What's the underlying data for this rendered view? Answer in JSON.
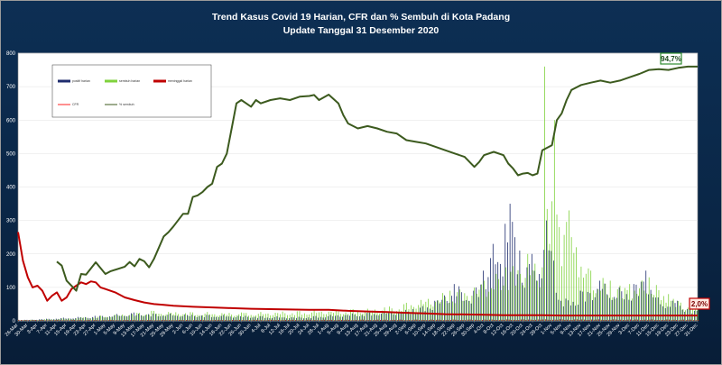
{
  "chart_data": {
    "type": "bar+line",
    "title": "Trend Kasus Covid 19 Harian, CFR dan % Sembuh di Kota Padang",
    "subtitle": "Update Tanggal 31 Desember  2020",
    "ylim": [
      0,
      800
    ],
    "y_ticks": [
      0,
      100,
      200,
      300,
      400,
      500,
      600,
      700,
      800
    ],
    "x_tick_labels": [
      "26-Mar",
      "30-Mar",
      "3-Apr",
      "7-Apr",
      "11-Apr",
      "15-Apr",
      "19-Apr",
      "23-Apr",
      "27-Apr",
      "1-May",
      "5-May",
      "9-May",
      "13-May",
      "17-May",
      "21-May",
      "25-May",
      "29-May",
      "2-Jun",
      "6-Jun",
      "10-Jun",
      "14-Jun",
      "18-Jun",
      "22-Jun",
      "26-Jun",
      "30-Jun",
      "4-Jul",
      "8-Jul",
      "12-Jul",
      "16-Jul",
      "20-Jul",
      "24-Jul",
      "28-Jul",
      "1-Aug",
      "5-Aug",
      "9-Aug",
      "13-Aug",
      "17-Aug",
      "21-Aug",
      "25-Aug",
      "29-Aug",
      "2-Sep",
      "6-Sep",
      "10-Sep",
      "14-Sep",
      "18-Sep",
      "22-Sep",
      "26-Sep",
      "30-Sep",
      "4-Oct",
      "8-Oct",
      "12-Oct",
      "16-Oct",
      "20-Oct",
      "24-Oct",
      "28-Oct",
      "1-Nov",
      "5-Nov",
      "9-Nov",
      "13-Nov",
      "17-Nov",
      "21-Nov",
      "25-Nov",
      "29-Nov",
      "3-Dec",
      "7-Dec",
      "11-Dec",
      "15-Dec",
      "19-Dec",
      "23-Dec",
      "27-Dec",
      "31-Dec"
    ],
    "legend": [
      "positif harian",
      "sembuh harian",
      "meninggal harian",
      "CFR",
      "% sembuh"
    ],
    "series_colors": {
      "positif": "#1f2d6e",
      "sembuh": "#7fd23c",
      "meninggal": "#c00000",
      "cfr": "#ff2020",
      "sembuh_pct": "#3c5a1e"
    },
    "annotations": [
      {
        "label": "94,7%",
        "series": "% sembuh",
        "x": "31-Dec",
        "value": 94.7
      },
      {
        "label": "2,0%",
        "series": "CFR",
        "x": "31-Dec",
        "value": 2.0
      }
    ],
    "pct_sembuh_keypoints": [
      [
        "26-Mar",
        null
      ],
      [
        "11-Apr",
        177
      ],
      [
        "13-Apr",
        165
      ],
      [
        "15-Apr",
        120
      ],
      [
        "19-Apr",
        90
      ],
      [
        "21-Apr",
        140
      ],
      [
        "23-Apr",
        138
      ],
      [
        "27-Apr",
        175
      ],
      [
        "1-May",
        140
      ],
      [
        "3-May",
        148
      ],
      [
        "9-May",
        162
      ],
      [
        "11-May",
        176
      ],
      [
        "13-May",
        163
      ],
      [
        "15-May",
        185
      ],
      [
        "17-May",
        178
      ],
      [
        "19-May",
        160
      ],
      [
        "21-May",
        185
      ],
      [
        "25-May",
        252
      ],
      [
        "27-May",
        265
      ],
      [
        "29-May",
        282
      ],
      [
        "2-Jun",
        320
      ],
      [
        "4-Jun",
        320
      ],
      [
        "6-Jun",
        370
      ],
      [
        "8-Jun",
        375
      ],
      [
        "10-Jun",
        385
      ],
      [
        "12-Jun",
        400
      ],
      [
        "14-Jun",
        410
      ],
      [
        "16-Jun",
        460
      ],
      [
        "18-Jun",
        470
      ],
      [
        "20-Jun",
        500
      ],
      [
        "22-Jun",
        575
      ],
      [
        "24-Jun",
        650
      ],
      [
        "26-Jun",
        660
      ],
      [
        "28-Jun",
        650
      ],
      [
        "30-Jun",
        640
      ],
      [
        "2-Jul",
        660
      ],
      [
        "4-Jul",
        650
      ],
      [
        "8-Jul",
        660
      ],
      [
        "12-Jul",
        665
      ],
      [
        "16-Jul",
        660
      ],
      [
        "20-Jul",
        670
      ],
      [
        "24-Jul",
        672
      ],
      [
        "26-Jul",
        675
      ],
      [
        "28-Jul",
        660
      ],
      [
        "1-Aug",
        676
      ],
      [
        "5-Aug",
        650
      ],
      [
        "7-Aug",
        615
      ],
      [
        "9-Aug",
        590
      ],
      [
        "13-Aug",
        575
      ],
      [
        "17-Aug",
        582
      ],
      [
        "21-Aug",
        575
      ],
      [
        "25-Aug",
        565
      ],
      [
        "29-Aug",
        560
      ],
      [
        "2-Sep",
        540
      ],
      [
        "6-Sep",
        535
      ],
      [
        "10-Sep",
        530
      ],
      [
        "14-Sep",
        520
      ],
      [
        "18-Sep",
        510
      ],
      [
        "22-Sep",
        500
      ],
      [
        "26-Sep",
        490
      ],
      [
        "30-Sep",
        460
      ],
      [
        "2-Oct",
        475
      ],
      [
        "4-Oct",
        495
      ],
      [
        "8-Oct",
        505
      ],
      [
        "12-Oct",
        495
      ],
      [
        "14-Oct",
        470
      ],
      [
        "16-Oct",
        455
      ],
      [
        "18-Oct",
        435
      ],
      [
        "20-Oct",
        440
      ],
      [
        "22-Oct",
        442
      ],
      [
        "24-Oct",
        435
      ],
      [
        "26-Oct",
        440
      ],
      [
        "28-Oct",
        510
      ],
      [
        "1-Nov",
        525
      ],
      [
        "3-Nov",
        600
      ],
      [
        "5-Nov",
        620
      ],
      [
        "7-Nov",
        660
      ],
      [
        "9-Nov",
        690
      ],
      [
        "13-Nov",
        705
      ],
      [
        "17-Nov",
        712
      ],
      [
        "21-Nov",
        718
      ],
      [
        "25-Nov",
        712
      ],
      [
        "29-Nov",
        718
      ],
      [
        "3-Dec",
        728
      ],
      [
        "7-Dec",
        738
      ],
      [
        "11-Dec",
        750
      ],
      [
        "15-Dec",
        752
      ],
      [
        "19-Dec",
        750
      ],
      [
        "23-Dec",
        756
      ],
      [
        "27-Dec",
        760
      ],
      [
        "31-Dec",
        760
      ]
    ],
    "cfr_keypoints": [
      [
        "26-Mar",
        265
      ],
      [
        "28-Mar",
        180
      ],
      [
        "30-Mar",
        130
      ],
      [
        "1-Apr",
        100
      ],
      [
        "3-Apr",
        105
      ],
      [
        "5-Apr",
        90
      ],
      [
        "7-Apr",
        60
      ],
      [
        "9-Apr",
        75
      ],
      [
        "11-Apr",
        85
      ],
      [
        "13-Apr",
        60
      ],
      [
        "15-Apr",
        70
      ],
      [
        "17-Apr",
        95
      ],
      [
        "19-Apr",
        105
      ],
      [
        "21-Apr",
        115
      ],
      [
        "23-Apr",
        110
      ],
      [
        "25-Apr",
        118
      ],
      [
        "27-Apr",
        115
      ],
      [
        "29-Apr",
        100
      ],
      [
        "1-May",
        95
      ],
      [
        "5-May",
        85
      ],
      [
        "9-May",
        70
      ],
      [
        "13-May",
        62
      ],
      [
        "17-May",
        55
      ],
      [
        "21-May",
        50
      ],
      [
        "25-May",
        48
      ],
      [
        "29-May",
        45
      ],
      [
        "6-Jun",
        42
      ],
      [
        "14-Jun",
        40
      ],
      [
        "22-Jun",
        38
      ],
      [
        "30-Jun",
        36
      ],
      [
        "8-Jul",
        35
      ],
      [
        "16-Jul",
        34
      ],
      [
        "24-Jul",
        33
      ],
      [
        "1-Aug",
        33
      ],
      [
        "9-Aug",
        30
      ],
      [
        "17-Aug",
        28
      ],
      [
        "25-Aug",
        26
      ],
      [
        "2-Sep",
        24
      ],
      [
        "10-Sep",
        22
      ],
      [
        "18-Sep",
        20
      ],
      [
        "26-Sep",
        19
      ],
      [
        "4-Oct",
        18
      ],
      [
        "12-Oct",
        17
      ],
      [
        "20-Oct",
        17
      ],
      [
        "28-Oct",
        17
      ],
      [
        "5-Nov",
        16
      ],
      [
        "13-Nov",
        16
      ],
      [
        "21-Nov",
        16
      ],
      [
        "29-Nov",
        16
      ],
      [
        "7-Dec",
        16
      ],
      [
        "15-Dec",
        16
      ],
      [
        "23-Dec",
        16
      ],
      [
        "31-Dec",
        16
      ]
    ],
    "positif_harian_keypoints": [
      [
        "26-Mar",
        2
      ],
      [
        "27-Apr",
        15
      ],
      [
        "13-May",
        25
      ],
      [
        "20-Jul",
        12
      ],
      [
        "5-Sep",
        35
      ],
      [
        "14-Sep",
        60
      ],
      [
        "22-Sep",
        110
      ],
      [
        "30-Sep",
        90
      ],
      [
        "4-Oct",
        150
      ],
      [
        "8-Oct",
        230
      ],
      [
        "11-Oct",
        170
      ],
      [
        "13-Oct",
        290
      ],
      [
        "15-Oct",
        350
      ],
      [
        "17-Oct",
        250
      ],
      [
        "19-Oct",
        210
      ],
      [
        "22-Oct",
        160
      ],
      [
        "24-Oct",
        200
      ],
      [
        "27-Oct",
        140
      ],
      [
        "30-Oct",
        300
      ],
      [
        "2-Nov",
        180
      ],
      [
        "5-Nov",
        60
      ],
      [
        "13-Nov",
        90
      ],
      [
        "21-Nov",
        120
      ],
      [
        "29-Nov",
        100
      ],
      [
        "5-Dec",
        110
      ],
      [
        "10-Dec",
        150
      ],
      [
        "15-Dec",
        70
      ],
      [
        "23-Dec",
        60
      ],
      [
        "31-Dec",
        30
      ]
    ],
    "sembuh_harian_keypoints": [
      [
        "26-Mar",
        2
      ],
      [
        "21-Apr",
        10
      ],
      [
        "20-May",
        30
      ],
      [
        "26-Jun",
        25
      ],
      [
        "24-Aug",
        40
      ],
      [
        "20-Sep",
        90
      ],
      [
        "4-Oct",
        120
      ],
      [
        "13-Oct",
        160
      ],
      [
        "22-Oct",
        200
      ],
      [
        "28-Oct",
        160
      ],
      [
        "29-Oct",
        760
      ],
      [
        "31-Oct",
        230
      ],
      [
        "2-Nov",
        600
      ],
      [
        "4-Nov",
        280
      ],
      [
        "8-Nov",
        330
      ],
      [
        "11-Nov",
        220
      ],
      [
        "17-Nov",
        150
      ],
      [
        "25-Nov",
        120
      ],
      [
        "3-Dec",
        110
      ],
      [
        "11-Dec",
        130
      ],
      [
        "19-Dec",
        80
      ],
      [
        "31-Dec",
        40
      ]
    ],
    "meninggal_harian_keypoints": [
      [
        "26-Mar",
        3
      ],
      [
        "1-Jun",
        3
      ],
      [
        "1-Oct",
        4
      ],
      [
        "1-Nov",
        5
      ],
      [
        "31-Dec",
        4
      ]
    ]
  }
}
